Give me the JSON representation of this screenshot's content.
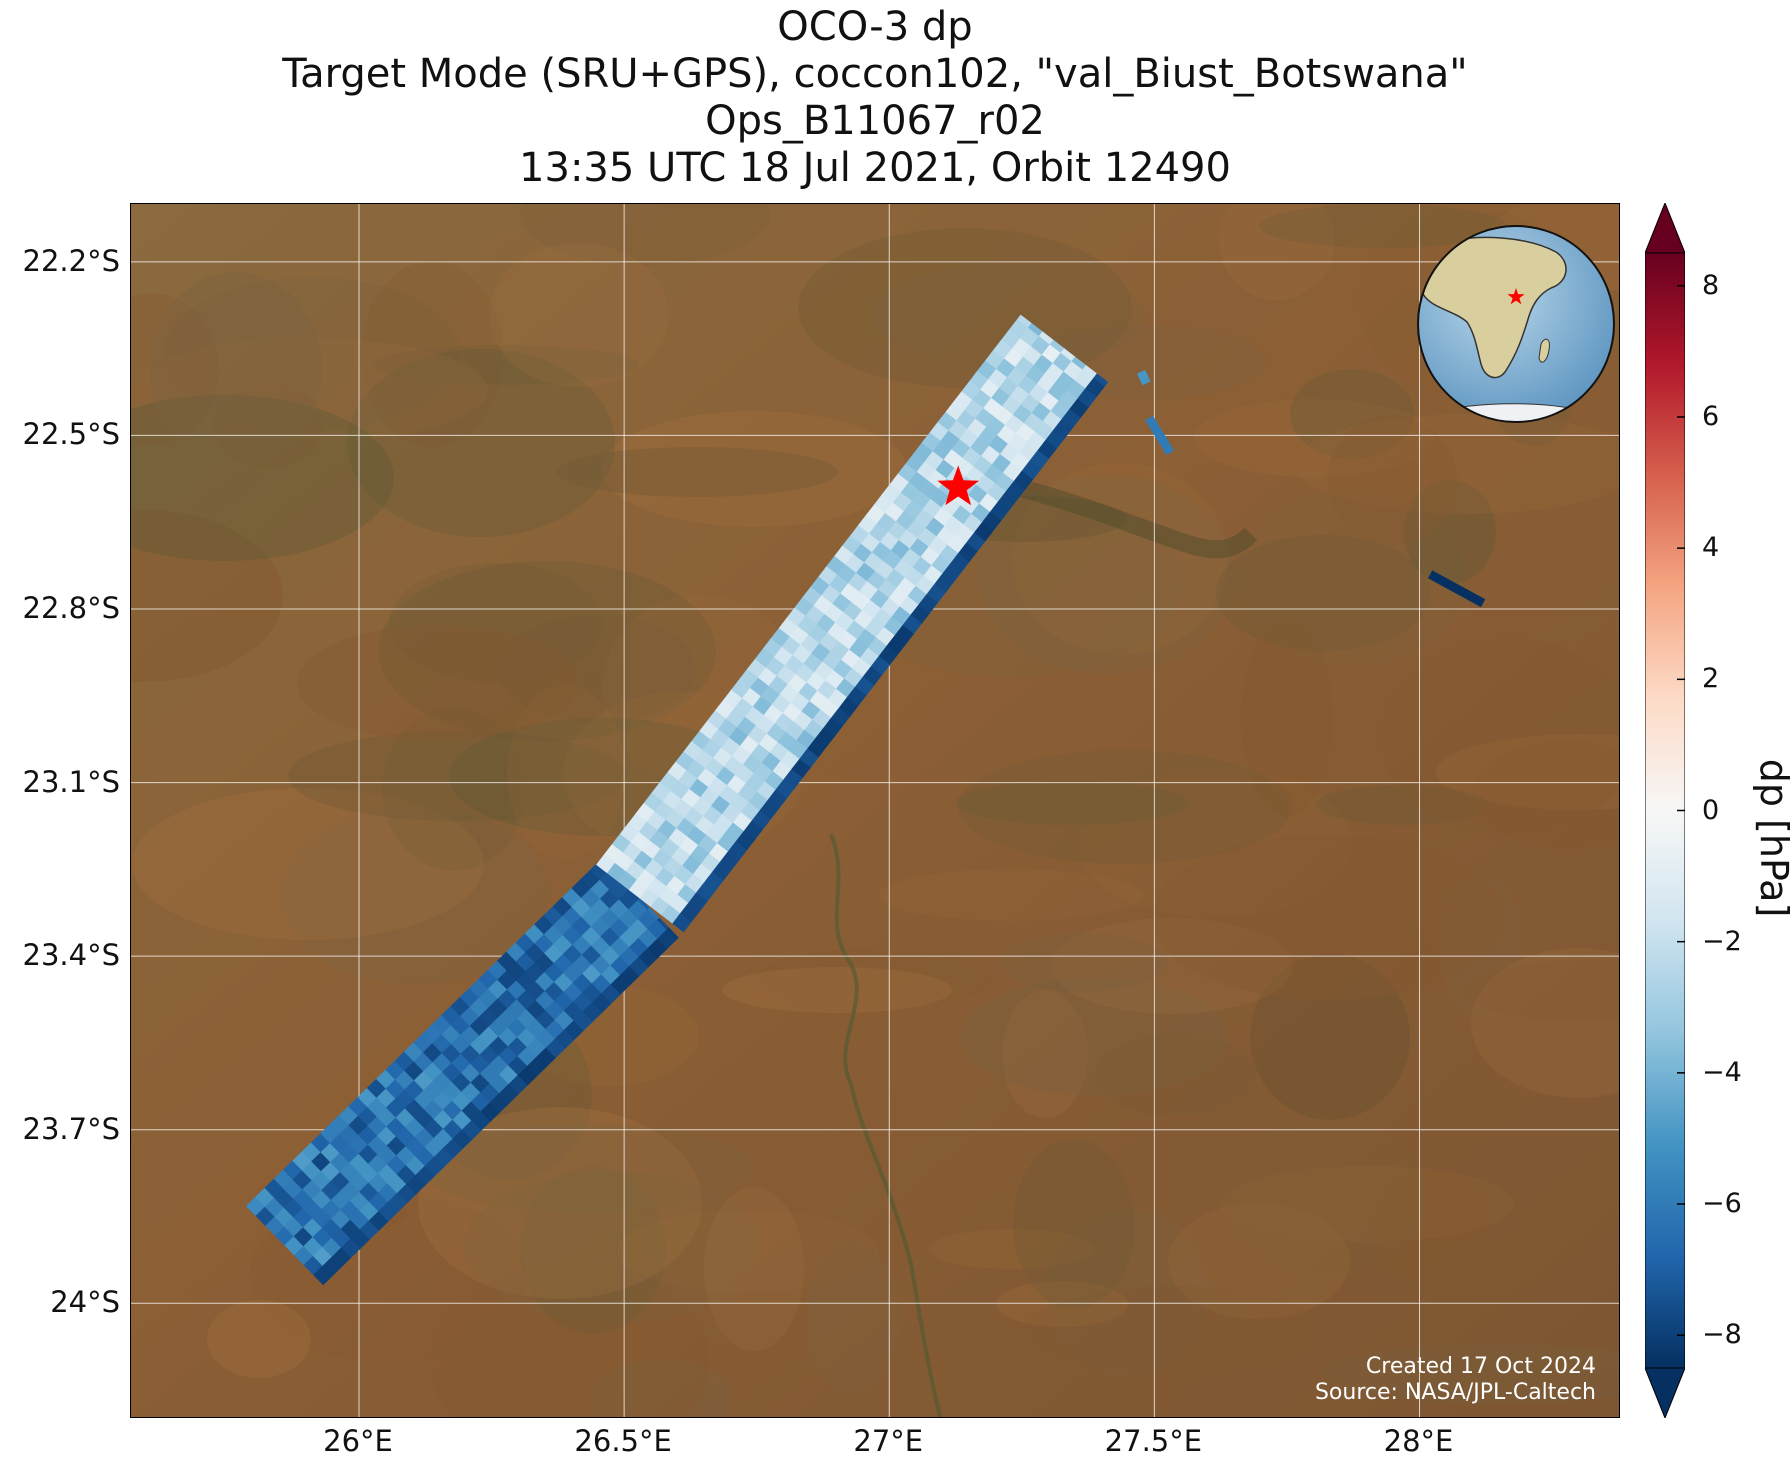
{
  "title_lines": [
    "OCO-3 dp",
    "Target Mode (SRU+GPS), coccon102, \"val_Biust_Botswana\"",
    "Ops_B11067_r02",
    "13:35 UTC 18 Jul 2021, Orbit 12490"
  ],
  "map": {
    "lon_range": [
      25.57,
      28.38
    ],
    "lat_range": [
      -24.2,
      -22.1
    ],
    "lat_ticks": [
      {
        "value": -22.2,
        "label": "22.2°S"
      },
      {
        "value": -22.5,
        "label": "22.5°S"
      },
      {
        "value": -22.8,
        "label": "22.8°S"
      },
      {
        "value": -23.1,
        "label": "23.1°S"
      },
      {
        "value": -23.4,
        "label": "23.4°S"
      },
      {
        "value": -23.7,
        "label": "23.7°S"
      },
      {
        "value": -24.0,
        "label": "24°S"
      }
    ],
    "lon_ticks": [
      {
        "value": 26.0,
        "label": "26°E"
      },
      {
        "value": 26.5,
        "label": "26.5°E"
      },
      {
        "value": 27.0,
        "label": "27°E"
      },
      {
        "value": 27.5,
        "label": "27.5°E"
      },
      {
        "value": 28.0,
        "label": "28°E"
      }
    ],
    "gridlines": true,
    "basemap": "satellite imagery",
    "target_site": {
      "lon": 27.13,
      "lat": -22.59,
      "marker": "red-star",
      "color": "#ff0000"
    },
    "inset_globe": {
      "position": "top-right",
      "marker": "red-star"
    },
    "swath_segments": [
      {
        "lon_start": 25.86,
        "lat_start": -23.9,
        "lon_end": 26.53,
        "lat_end": -23.3,
        "mean_dp_hPa": -6.3
      },
      {
        "lon_start": 26.53,
        "lat_start": -23.3,
        "lon_end": 27.33,
        "lat_end": -22.35,
        "mean_dp_hPa": -2.3
      }
    ],
    "swath_edge_dp_hPa": -8.2,
    "isolated_soundings": [
      {
        "lon_start": 27.475,
        "lat_start": -22.39,
        "lon_end": 27.485,
        "lat_end": -22.41,
        "dp_hPa": -5.0
      },
      {
        "lon_start": 27.49,
        "lat_start": -22.47,
        "lon_end": 27.53,
        "lat_end": -22.53,
        "dp_hPa": -6.0
      },
      {
        "lon_start": 28.02,
        "lat_start": -22.74,
        "lon_end": 28.12,
        "lat_end": -22.79,
        "dp_hPa": -8.5
      }
    ]
  },
  "colorbar": {
    "label": "dp [hPa]",
    "colormap": "RdBu_r",
    "range": [
      -8.5,
      8.5
    ],
    "extend": "both",
    "ticks": [
      {
        "value": 8,
        "label": "8"
      },
      {
        "value": 6,
        "label": "6"
      },
      {
        "value": 4,
        "label": "4"
      },
      {
        "value": 2,
        "label": "2"
      },
      {
        "value": 0,
        "label": "0"
      },
      {
        "value": -2,
        "label": "−2"
      },
      {
        "value": -4,
        "label": "−4"
      },
      {
        "value": -6,
        "label": "−6"
      },
      {
        "value": -8,
        "label": "−8"
      }
    ],
    "colors": [
      "#053061",
      "#2166ac",
      "#4393c3",
      "#92c5de",
      "#d1e5f0",
      "#f7f7f7",
      "#fddbc7",
      "#f4a582",
      "#d6604d",
      "#b2182b",
      "#67001f"
    ]
  },
  "credit_lines": [
    "Created 17 Oct 2024",
    "Source: NASA/JPL-Caltech"
  ]
}
